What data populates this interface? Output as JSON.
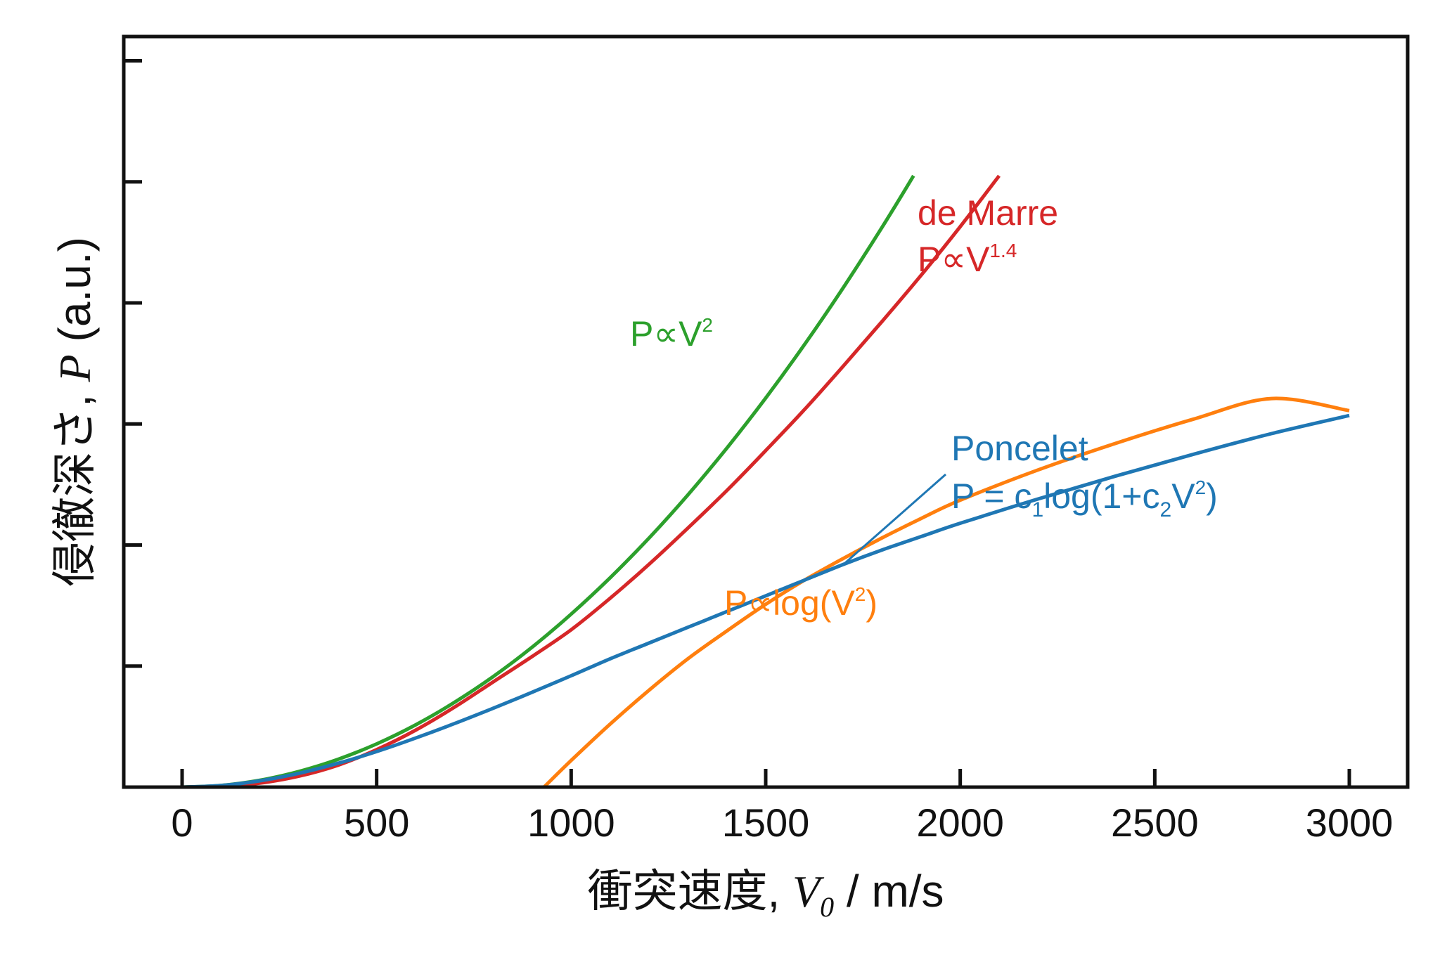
{
  "chart_data": {
    "type": "line",
    "xlabel": {
      "prefix": "衝突速度, ",
      "var": "V",
      "sub": "0",
      "unit": " / m/s"
    },
    "ylabel": {
      "prefix": "侵徹深さ, ",
      "var": "P",
      "unit": " (a.u.)"
    },
    "xlim": [
      -150,
      3150
    ],
    "ylim": [
      0,
      6.2
    ],
    "xticks": [
      0,
      500,
      1000,
      1500,
      2000,
      2500,
      3000
    ],
    "xtick_labels": [
      "0",
      "500",
      "1000",
      "1500",
      "2000",
      "2500",
      "3000"
    ],
    "yticks": [
      1,
      2,
      3,
      4,
      5,
      6
    ],
    "ytick_labels_shown": false,
    "grid": false,
    "series": [
      {
        "key": "v2",
        "color": "#2ca02c",
        "x": [
          0,
          100,
          200,
          300,
          400,
          500,
          600,
          700,
          800,
          900,
          1000,
          1100,
          1200,
          1300,
          1400,
          1500,
          1600,
          1700,
          1800,
          1880
        ],
        "y": [
          0,
          0.014,
          0.057,
          0.129,
          0.229,
          0.357,
          0.514,
          0.7,
          0.914,
          1.157,
          1.429,
          1.729,
          2.057,
          2.414,
          2.8,
          3.214,
          3.657,
          4.129,
          4.629,
          5.05
        ]
      },
      {
        "key": "demarre",
        "color": "#d62728",
        "x": [
          0,
          100,
          200,
          300,
          400,
          500,
          600,
          700,
          800,
          900,
          1000,
          1100,
          1200,
          1300,
          1400,
          1500,
          1600,
          1700,
          1800,
          1900,
          2000,
          2100
        ],
        "y": [
          0,
          0.006,
          0.033,
          0.09,
          0.18,
          0.31,
          0.47,
          0.66,
          0.87,
          1.08,
          1.3,
          1.56,
          1.84,
          2.14,
          2.45,
          2.78,
          3.12,
          3.48,
          3.85,
          4.23,
          4.63,
          5.05
        ]
      },
      {
        "key": "poncelet",
        "color": "#1f77b4",
        "x": [
          0,
          100,
          200,
          300,
          400,
          500,
          600,
          700,
          800,
          900,
          1000,
          1100,
          1200,
          1300,
          1400,
          1500,
          1600,
          1700,
          1800,
          1900,
          2000,
          2200,
          2400,
          2600,
          2800,
          3000
        ],
        "y": [
          0,
          0.013,
          0.052,
          0.114,
          0.196,
          0.294,
          0.405,
          0.525,
          0.652,
          0.784,
          0.92,
          1.06,
          1.19,
          1.32,
          1.45,
          1.58,
          1.71,
          1.84,
          1.96,
          2.07,
          2.18,
          2.38,
          2.57,
          2.75,
          2.92,
          3.07
        ]
      },
      {
        "key": "logv2",
        "color": "#ff7f0e",
        "x": [
          930,
          1000,
          1100,
          1200,
          1300,
          1400,
          1500,
          1600,
          1700,
          1800,
          1900,
          2000,
          2200,
          2400,
          2600,
          2800,
          3000
        ],
        "y": [
          0,
          0.22,
          0.52,
          0.8,
          1.06,
          1.29,
          1.51,
          1.71,
          1.89,
          2.06,
          2.22,
          2.37,
          2.62,
          2.84,
          3.04,
          3.21,
          3.11
        ]
      }
    ],
    "annotations": [
      {
        "key": "v2",
        "color": "#2ca02c",
        "lines": [
          [
            {
              "t": "P∝V"
            },
            {
              "t": "2",
              "sup": true
            }
          ]
        ]
      },
      {
        "key": "demarre",
        "color": "#d62728",
        "lines": [
          [
            {
              "t": "de Marre"
            }
          ],
          [
            {
              "t": "P∝V"
            },
            {
              "t": "1.4",
              "sup": true
            }
          ]
        ]
      },
      {
        "key": "poncelet",
        "color": "#1f77b4",
        "lines": [
          [
            {
              "t": "Poncelet"
            }
          ],
          [
            {
              "t": "P = c"
            },
            {
              "t": "1",
              "sub": true
            },
            {
              "t": "log(1+c"
            },
            {
              "t": "2",
              "sub": true
            },
            {
              "t": "V"
            },
            {
              "t": "2",
              "sup": true
            },
            {
              "t": ")"
            }
          ]
        ]
      },
      {
        "key": "logv2",
        "color": "#ff7f0e",
        "lines": [
          [
            {
              "t": "P∝log(V"
            },
            {
              "t": "2",
              "sup": true
            },
            {
              "t": ")"
            }
          ]
        ]
      }
    ]
  }
}
